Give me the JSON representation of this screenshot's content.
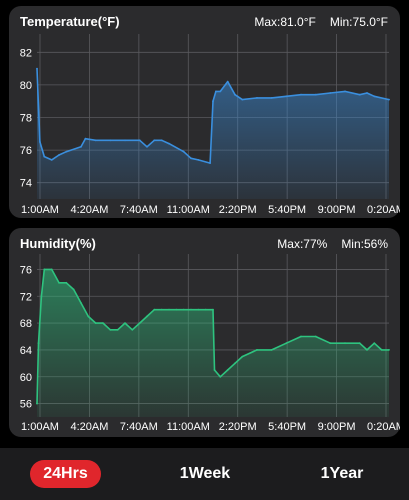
{
  "temperature": {
    "title": "Temperature(°F)",
    "max_label": "Max:81.0°F",
    "min_label": "Min:75.0°F"
  },
  "humidity": {
    "title": "Humidity(%)",
    "max_label": "Max:77%",
    "min_label": "Min:56%"
  },
  "tabs": {
    "day": "24Hrs",
    "week": "1Week",
    "year": "1Year",
    "active_color": "#e0262c"
  },
  "chart_data": [
    {
      "type": "area",
      "title": "Temperature(°F)",
      "color": "#3a8fde",
      "ylim": [
        73,
        83
      ],
      "yticks": [
        74,
        76,
        78,
        80,
        82
      ],
      "xticks": [
        "1:00AM",
        "4:20AM",
        "7:40AM",
        "11:00AM",
        "2:20PM",
        "5:40PM",
        "9:00PM",
        "0:20AM"
      ],
      "grid": true,
      "x_hours": [
        0,
        0.2,
        0.5,
        1,
        1.5,
        2,
        3,
        3.3,
        4,
        5,
        6,
        7,
        7.5,
        8,
        8.5,
        9,
        10,
        10.5,
        11,
        11.8,
        12,
        12.2,
        12.5,
        13,
        13.5,
        14,
        15,
        16,
        17,
        18,
        19,
        20,
        21,
        22,
        22.5,
        23,
        24
      ],
      "values": [
        81.0,
        76.5,
        75.6,
        75.4,
        75.7,
        75.9,
        76.2,
        76.7,
        76.6,
        76.6,
        76.6,
        76.6,
        76.2,
        76.6,
        76.6,
        76.4,
        75.9,
        75.5,
        75.4,
        75.2,
        79.0,
        79.6,
        79.6,
        80.2,
        79.4,
        79.1,
        79.2,
        79.2,
        79.3,
        79.4,
        79.4,
        79.5,
        79.6,
        79.4,
        79.5,
        79.3,
        79.1
      ]
    },
    {
      "type": "area",
      "title": "Humidity(%)",
      "color": "#2ec37f",
      "ylim": [
        54,
        78
      ],
      "yticks": [
        56,
        60,
        64,
        68,
        72,
        76
      ],
      "xticks": [
        "1:00AM",
        "4:20AM",
        "7:40AM",
        "11:00AM",
        "2:20PM",
        "5:40PM",
        "9:00PM",
        "0:20AM"
      ],
      "grid": true,
      "x_hours": [
        0,
        0.1,
        0.3,
        0.5,
        1,
        1.5,
        2,
        2.5,
        3,
        3.5,
        4,
        4.5,
        5,
        5.5,
        6,
        6.5,
        7,
        7.5,
        8,
        8.5,
        9,
        9.5,
        10,
        10.5,
        11,
        11.5,
        12,
        12.1,
        12.5,
        13,
        13.5,
        14,
        15,
        16,
        17,
        18,
        19,
        20,
        21,
        22,
        22.5,
        23,
        23.5,
        24
      ],
      "values": [
        56,
        65,
        72,
        76,
        76,
        74,
        74,
        73,
        71,
        69,
        68,
        68,
        67,
        67,
        68,
        67,
        68,
        69,
        70,
        70,
        70,
        70,
        70,
        70,
        70,
        70,
        70,
        61,
        60,
        61,
        62,
        63,
        64,
        64,
        65,
        66,
        66,
        65,
        65,
        65,
        64,
        65,
        64,
        64
      ]
    }
  ]
}
